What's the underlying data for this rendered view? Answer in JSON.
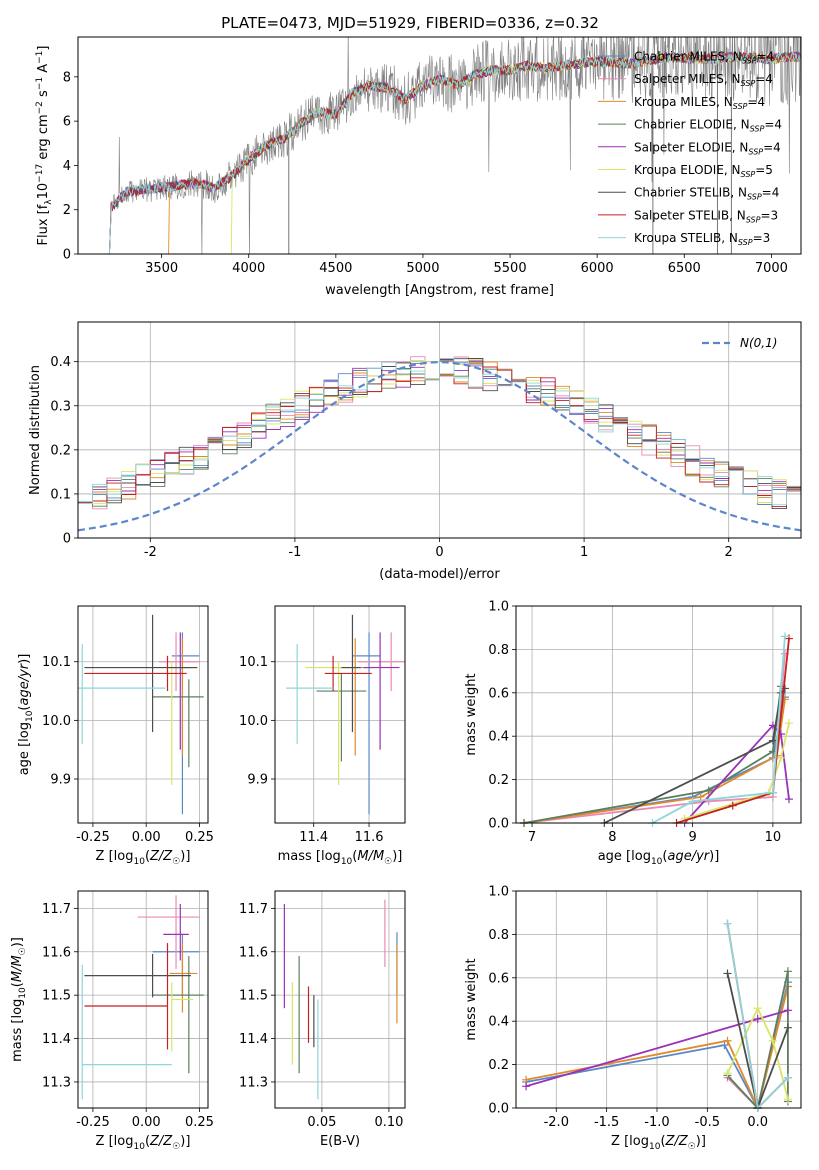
{
  "colors": {
    "Chabrier MILES": "#5b87c9",
    "Salpeter MILES": "#e98bb2",
    "Kroupa MILES": "#e08a2c",
    "Chabrier ELODIE": "#5e7f5f",
    "Salpeter ELODIE": "#9b31b6",
    "Kroupa ELODIE": "#d9e566",
    "Chabrier STELIB": "#4d4d4d",
    "Salpeter STELIB": "#c42121",
    "Kroupa STELIB": "#8ed6d9",
    "spectrum": "#808080",
    "gaussian": "#5b87c9"
  },
  "chart_data": [
    {
      "id": "spectrum",
      "type": "line",
      "title": "PLATE=0473, MJD=51929, FIBERID=0336, z=0.32",
      "xlabel": "wavelength [Angstrom, rest frame]",
      "ylabel": "Flux [f_λ 10^-17 erg cm^-2 s^-1 A^-1]",
      "xlim": [
        3020,
        7170
      ],
      "ylim": [
        0,
        9.8
      ],
      "xticks": [
        3500,
        4000,
        4500,
        5000,
        5500,
        6000,
        6500,
        7000
      ],
      "yticks": [
        0,
        2,
        4,
        6,
        8
      ],
      "legend_position": "upper-right",
      "continuum_nodes": [
        [
          3200,
          0.0
        ],
        [
          3210,
          2.1
        ],
        [
          3300,
          2.8
        ],
        [
          3500,
          3.0
        ],
        [
          3700,
          3.2
        ],
        [
          3800,
          3.0
        ],
        [
          3900,
          3.5
        ],
        [
          4000,
          4.3
        ],
        [
          4100,
          4.9
        ],
        [
          4200,
          5.2
        ],
        [
          4300,
          5.9
        ],
        [
          4400,
          6.4
        ],
        [
          4500,
          6.3
        ],
        [
          4600,
          7.3
        ],
        [
          4700,
          7.6
        ],
        [
          4800,
          7.5
        ],
        [
          4900,
          7.0
        ],
        [
          5000,
          7.6
        ],
        [
          5100,
          7.9
        ],
        [
          5200,
          7.6
        ],
        [
          5300,
          8.1
        ],
        [
          5400,
          8.3
        ],
        [
          5500,
          8.3
        ],
        [
          5600,
          8.5
        ],
        [
          5700,
          8.4
        ],
        [
          5800,
          8.5
        ],
        [
          5900,
          8.6
        ],
        [
          6000,
          8.7
        ],
        [
          6200,
          8.6
        ],
        [
          6400,
          8.9
        ],
        [
          6600,
          8.8
        ],
        [
          6800,
          8.9
        ],
        [
          7000,
          8.8
        ],
        [
          7100,
          8.9
        ]
      ],
      "model_starts": [
        3200,
        3200,
        3540,
        3200,
        3200,
        3900,
        3200,
        3200,
        3200
      ],
      "series": [
        {
          "name": "Chabrier MILES",
          "nssp": "4"
        },
        {
          "name": "Salpeter MILES",
          "nssp": "4"
        },
        {
          "name": "Kroupa MILES",
          "nssp": "4"
        },
        {
          "name": "Chabrier ELODIE",
          "nssp": "4"
        },
        {
          "name": "Salpeter ELODIE",
          "nssp": "4"
        },
        {
          "name": "Kroupa ELODIE",
          "nssp": "5"
        },
        {
          "name": "Chabrier STELIB",
          "nssp": "4"
        },
        {
          "name": "Salpeter STELIB",
          "nssp": "3"
        },
        {
          "name": "Kroupa STELIB",
          "nssp": "3"
        }
      ]
    },
    {
      "id": "residuals",
      "type": "histogram",
      "xlabel": "(data-model)/error",
      "ylabel": "Normed distribution",
      "xlim": [
        -2.5,
        2.5
      ],
      "ylim": [
        0,
        0.49
      ],
      "xticks": [
        -2,
        -1,
        0,
        1,
        2
      ],
      "yticks": [
        0.0,
        0.1,
        0.2,
        0.3,
        0.4
      ],
      "grid": true,
      "gaussian_label": "N(0,1)",
      "legend_position": "upper-right",
      "bin_start": -2.5,
      "bin_width": 0.1,
      "bins": 50
    },
    {
      "id": "age-vs-z",
      "type": "scatter",
      "xlabel": "Z [log10(Z/Z☉)]",
      "ylabel": "age [log10(age/yr)]",
      "xlim": [
        -0.32,
        0.29
      ],
      "ylim": [
        9.825,
        10.195
      ],
      "xticks": [
        "-0.25",
        "0.00",
        "0.25"
      ],
      "yticks": [
        "9.9",
        "10.0",
        "10.1"
      ],
      "grid": true,
      "points": [
        {
          "series": "Chabrier MILES",
          "x": 0.17,
          "y": 10.11,
          "xerr": [
            0.05,
            0.08
          ],
          "yerr": [
            0.27,
            0.04
          ]
        },
        {
          "series": "Salpeter MILES",
          "x": 0.14,
          "y": 10.1,
          "xerr": [
            0.08,
            0.11
          ],
          "yerr": [
            0.05,
            0.05
          ]
        },
        {
          "series": "Kroupa MILES",
          "x": 0.17,
          "y": 10.09,
          "xerr": [
            0.06,
            0.07
          ],
          "yerr": [
            0.15,
            0.05
          ]
        },
        {
          "series": "Chabrier ELODIE",
          "x": 0.2,
          "y": 10.04,
          "xerr": [
            0.17,
            0.07
          ],
          "yerr": [
            0.12,
            0.03
          ]
        },
        {
          "series": "Salpeter ELODIE",
          "x": 0.16,
          "y": 10.09,
          "xerr": [
            0.05,
            0.04
          ],
          "yerr": [
            0.14,
            0.06
          ]
        },
        {
          "series": "Kroupa ELODIE",
          "x": 0.12,
          "y": 10.09,
          "xerr": [
            0.4,
            0.12
          ],
          "yerr": [
            0.2,
            0.01
          ]
        },
        {
          "series": "Chabrier STELIB",
          "x": 0.03,
          "y": 10.09,
          "xerr": [
            0.32,
            0.21
          ],
          "yerr": [
            0.11,
            0.09
          ]
        },
        {
          "series": "Salpeter STELIB",
          "x": 0.1,
          "y": 10.08,
          "xerr": [
            0.39,
            0.09
          ],
          "yerr": [
            0.03,
            0.03
          ]
        },
        {
          "series": "Kroupa STELIB",
          "x": -0.3,
          "y": 10.055,
          "xerr": [
            0.02,
            0.39
          ],
          "yerr": [
            0.095,
            0.075
          ]
        }
      ]
    },
    {
      "id": "age-vs-mass",
      "type": "scatter",
      "xlabel": "mass [log10(M/M☉)]",
      "ylabel": "",
      "xlim": [
        11.26,
        11.73
      ],
      "ylim": [
        9.825,
        10.195
      ],
      "xticks": [
        "11.4",
        "11.6"
      ],
      "yticks": [
        "9.9",
        "10.0",
        "10.1"
      ],
      "grid": true,
      "points": [
        {
          "series": "Chabrier MILES",
          "x": 11.6,
          "y": 10.11,
          "xerr": [
            0.06,
            0.04
          ],
          "yerr": [
            0.27,
            0.04
          ]
        },
        {
          "series": "Salpeter MILES",
          "x": 11.68,
          "y": 10.1,
          "xerr": [
            0.12,
            0.05
          ],
          "yerr": [
            0.05,
            0.05
          ]
        },
        {
          "series": "Kroupa MILES",
          "x": 11.55,
          "y": 10.09,
          "xerr": [
            0.09,
            0.07
          ],
          "yerr": [
            0.15,
            0.05
          ]
        },
        {
          "series": "Chabrier ELODIE",
          "x": 11.5,
          "y": 10.05,
          "xerr": [
            0.09,
            0.09
          ],
          "yerr": [
            0.12,
            0.03
          ]
        },
        {
          "series": "Salpeter ELODIE",
          "x": 11.64,
          "y": 10.09,
          "xerr": [
            0.06,
            0.07
          ],
          "yerr": [
            0.14,
            0.06
          ]
        },
        {
          "series": "Kroupa ELODIE",
          "x": 11.49,
          "y": 10.09,
          "xerr": [
            0.12,
            0.07
          ],
          "yerr": [
            0.2,
            0.01
          ]
        },
        {
          "series": "Chabrier STELIB",
          "x": 11.54,
          "y": 10.09,
          "xerr": [
            0.04,
            0.03
          ],
          "yerr": [
            0.11,
            0.09
          ]
        },
        {
          "series": "Salpeter STELIB",
          "x": 11.47,
          "y": 10.08,
          "xerr": [
            0.03,
            0.14
          ],
          "yerr": [
            0.03,
            0.03
          ]
        },
        {
          "series": "Kroupa STELIB",
          "x": 11.34,
          "y": 10.055,
          "xerr": [
            0.04,
            0.13
          ],
          "yerr": [
            0.095,
            0.075
          ]
        }
      ]
    },
    {
      "id": "weight-vs-age",
      "type": "line",
      "xlabel": "age [log10(age/yr)]",
      "ylabel": "mass weight",
      "xlim": [
        6.8,
        10.35
      ],
      "ylim": [
        0,
        1.0
      ],
      "xticks": [
        "7",
        "8",
        "9",
        "10"
      ],
      "yticks": [
        "0.0",
        "0.2",
        "0.4",
        "0.6",
        "0.8",
        "1.0"
      ],
      "grid": true,
      "series": [
        {
          "name": "Chabrier MILES",
          "x": [
            6.9,
            9.0,
            10.0,
            10.15
          ],
          "y": [
            0.0,
            0.12,
            0.3,
            0.58
          ]
        },
        {
          "name": "Salpeter MILES",
          "x": [
            6.9,
            9.2,
            10.0,
            10.15
          ],
          "y": [
            0.0,
            0.1,
            0.12,
            0.78
          ]
        },
        {
          "name": "Kroupa MILES",
          "x": [
            6.9,
            9.1,
            10.05,
            10.15
          ],
          "y": [
            0.0,
            0.12,
            0.31,
            0.57
          ]
        },
        {
          "name": "Chabrier ELODIE",
          "x": [
            6.9,
            9.2,
            10.0,
            10.1
          ],
          "y": [
            0.0,
            0.15,
            0.33,
            0.63
          ]
        },
        {
          "name": "Salpeter ELODIE",
          "x": [
            8.9,
            10.0,
            10.1,
            10.2
          ],
          "y": [
            0.0,
            0.45,
            0.41,
            0.11
          ]
        },
        {
          "name": "Kroupa ELODIE",
          "x": [
            8.9,
            9.95,
            10.1,
            10.2
          ],
          "y": [
            0.02,
            0.14,
            0.3,
            0.46
          ]
        },
        {
          "name": "Chabrier STELIB",
          "x": [
            7.9,
            10.0,
            10.1,
            10.15
          ],
          "y": [
            0.0,
            0.38,
            0.6,
            0.62
          ]
        },
        {
          "name": "Salpeter STELIB",
          "x": [
            8.8,
            9.5,
            10.0,
            10.2
          ],
          "y": [
            0.0,
            0.08,
            0.14,
            0.85
          ]
        },
        {
          "name": "Kroupa STELIB",
          "x": [
            8.5,
            9.0,
            10.0,
            10.15
          ],
          "y": [
            0.0,
            0.1,
            0.14,
            0.86
          ]
        }
      ]
    },
    {
      "id": "mass-vs-z",
      "type": "scatter",
      "xlabel": "Z [log10(Z/Z☉)]",
      "ylabel": "mass [log10(M/M☉)]",
      "xlim": [
        -0.32,
        0.29
      ],
      "ylim": [
        11.24,
        11.74
      ],
      "xticks": [
        "-0.25",
        "0.00",
        "0.25"
      ],
      "yticks": [
        "11.3",
        "11.4",
        "11.5",
        "11.6",
        "11.7"
      ],
      "grid": true,
      "points": [
        {
          "series": "Chabrier MILES",
          "x": 0.17,
          "y": 11.6,
          "xerr": [
            0.14,
            0.08
          ],
          "yerr": [
            0.1,
            0.04
          ]
        },
        {
          "series": "Salpeter MILES",
          "x": 0.14,
          "y": 11.68,
          "xerr": [
            0.18,
            0.11
          ],
          "yerr": [
            0.12,
            0.05
          ]
        },
        {
          "series": "Kroupa MILES",
          "x": 0.17,
          "y": 11.55,
          "xerr": [
            0.06,
            0.07
          ],
          "yerr": [
            0.09,
            0.07
          ]
        },
        {
          "series": "Chabrier ELODIE",
          "x": 0.2,
          "y": 11.5,
          "xerr": [
            0.17,
            0.07
          ],
          "yerr": [
            0.18,
            0.09
          ]
        },
        {
          "series": "Salpeter ELODIE",
          "x": 0.16,
          "y": 11.64,
          "xerr": [
            0.08,
            0.04
          ],
          "yerr": [
            0.06,
            0.07
          ]
        },
        {
          "series": "Kroupa ELODIE",
          "x": 0.12,
          "y": 11.49,
          "xerr": [
            0.0,
            0.1
          ],
          "yerr": [
            0.12,
            0.04
          ]
        },
        {
          "series": "Chabrier STELIB",
          "x": 0.03,
          "y": 11.545,
          "xerr": [
            0.32,
            0.18
          ],
          "yerr": [
            0.05,
            0.05
          ]
        },
        {
          "series": "Salpeter STELIB",
          "x": 0.1,
          "y": 11.475,
          "xerr": [
            0.39,
            0.0
          ],
          "yerr": [
            0.1,
            0.145
          ]
        },
        {
          "series": "Kroupa STELIB",
          "x": -0.3,
          "y": 11.34,
          "xerr": [
            0.0,
            0.42
          ],
          "yerr": [
            0.08,
            0.23
          ]
        }
      ]
    },
    {
      "id": "mass-vs-ebv",
      "type": "scatter",
      "xlabel": "E(B-V)",
      "ylabel": "",
      "xlim": [
        0.015,
        0.112
      ],
      "ylim": [
        11.24,
        11.74
      ],
      "xticks": [
        "0.05",
        "0.10"
      ],
      "yticks": [
        "11.3",
        "11.4",
        "11.5",
        "11.6",
        "11.7"
      ],
      "grid": true,
      "points": [
        {
          "series": "Chabrier MILES",
          "x": 0.106,
          "y": 11.6,
          "xerr": [
            0.0,
            0.0
          ],
          "yerr": [
            0.1,
            0.045
          ]
        },
        {
          "series": "Salpeter MILES",
          "x": 0.097,
          "y": 11.68,
          "xerr": [
            0.0,
            0.0
          ],
          "yerr": [
            0.115,
            0.04
          ]
        },
        {
          "series": "Kroupa MILES",
          "x": 0.106,
          "y": 11.55,
          "xerr": [
            0.0,
            0.0
          ],
          "yerr": [
            0.115,
            0.065
          ]
        },
        {
          "series": "Chabrier ELODIE",
          "x": 0.033,
          "y": 11.5,
          "xerr": [
            0.0,
            0.0
          ],
          "yerr": [
            0.18,
            0.09
          ]
        },
        {
          "series": "Salpeter ELODIE",
          "x": 0.022,
          "y": 11.64,
          "xerr": [
            0.0,
            0.0
          ],
          "yerr": [
            0.17,
            0.07
          ]
        },
        {
          "series": "Kroupa ELODIE",
          "x": 0.028,
          "y": 11.49,
          "xerr": [
            0.0,
            0.0
          ],
          "yerr": [
            0.15,
            0.04
          ]
        },
        {
          "series": "Chabrier STELIB",
          "x": 0.044,
          "y": 11.45,
          "xerr": [
            0.0,
            0.0
          ],
          "yerr": [
            0.07,
            0.05
          ]
        },
        {
          "series": "Salpeter STELIB",
          "x": 0.04,
          "y": 11.475,
          "xerr": [
            0.0,
            0.0
          ],
          "yerr": [
            0.085,
            0.045
          ]
        },
        {
          "series": "Kroupa STELIB",
          "x": 0.047,
          "y": 11.4,
          "xerr": [
            0.0,
            0.0
          ],
          "yerr": [
            0.14,
            0.09
          ]
        }
      ]
    },
    {
      "id": "weight-vs-z",
      "type": "line",
      "xlabel": "Z [log10(Z/Z☉)]",
      "ylabel": "mass weight",
      "xlim": [
        -2.4,
        0.43
      ],
      "ylim": [
        0,
        1.0
      ],
      "xticks": [
        "-2.0",
        "-1.5",
        "-1.0",
        "-0.5",
        "0.0"
      ],
      "yticks": [
        "0.0",
        "0.2",
        "0.4",
        "0.6",
        "0.8",
        "1.0"
      ],
      "grid": true,
      "series": [
        {
          "name": "Chabrier MILES",
          "x": [
            -2.3,
            -0.33,
            0.0,
            0.3
          ],
          "y": [
            0.12,
            0.29,
            0.0,
            0.58
          ]
        },
        {
          "name": "Salpeter MILES",
          "x": [
            -0.3,
            0.0,
            0.3
          ],
          "y": [
            0.14,
            0.0,
            0.56
          ]
        },
        {
          "name": "Kroupa MILES",
          "x": [
            -2.3,
            -0.3,
            0.0,
            0.3
          ],
          "y": [
            0.13,
            0.31,
            0.0,
            0.56
          ]
        },
        {
          "name": "Chabrier ELODIE",
          "x": [
            -0.3,
            0.0,
            0.3,
            0.3
          ],
          "y": [
            0.15,
            0.0,
            0.63,
            0.03
          ]
        },
        {
          "name": "Salpeter ELODIE",
          "x": [
            -2.3,
            0.0,
            0.3
          ],
          "y": [
            0.1,
            0.41,
            0.45
          ]
        },
        {
          "name": "Kroupa ELODIE",
          "x": [
            -0.3,
            0.0,
            0.15,
            0.3
          ],
          "y": [
            0.16,
            0.46,
            0.31,
            0.04
          ]
        },
        {
          "name": "Chabrier STELIB",
          "x": [
            -0.3,
            0.0,
            0.3
          ],
          "y": [
            0.62,
            0.0,
            0.37
          ]
        },
        {
          "name": "Salpeter STELIB",
          "x": [
            -0.3,
            0.0,
            0.3
          ],
          "y": [
            0.85,
            0.0,
            0.14
          ]
        },
        {
          "name": "Kroupa STELIB",
          "x": [
            -0.3,
            0.0,
            0.3
          ],
          "y": [
            0.85,
            0.0,
            0.14
          ]
        }
      ]
    }
  ]
}
